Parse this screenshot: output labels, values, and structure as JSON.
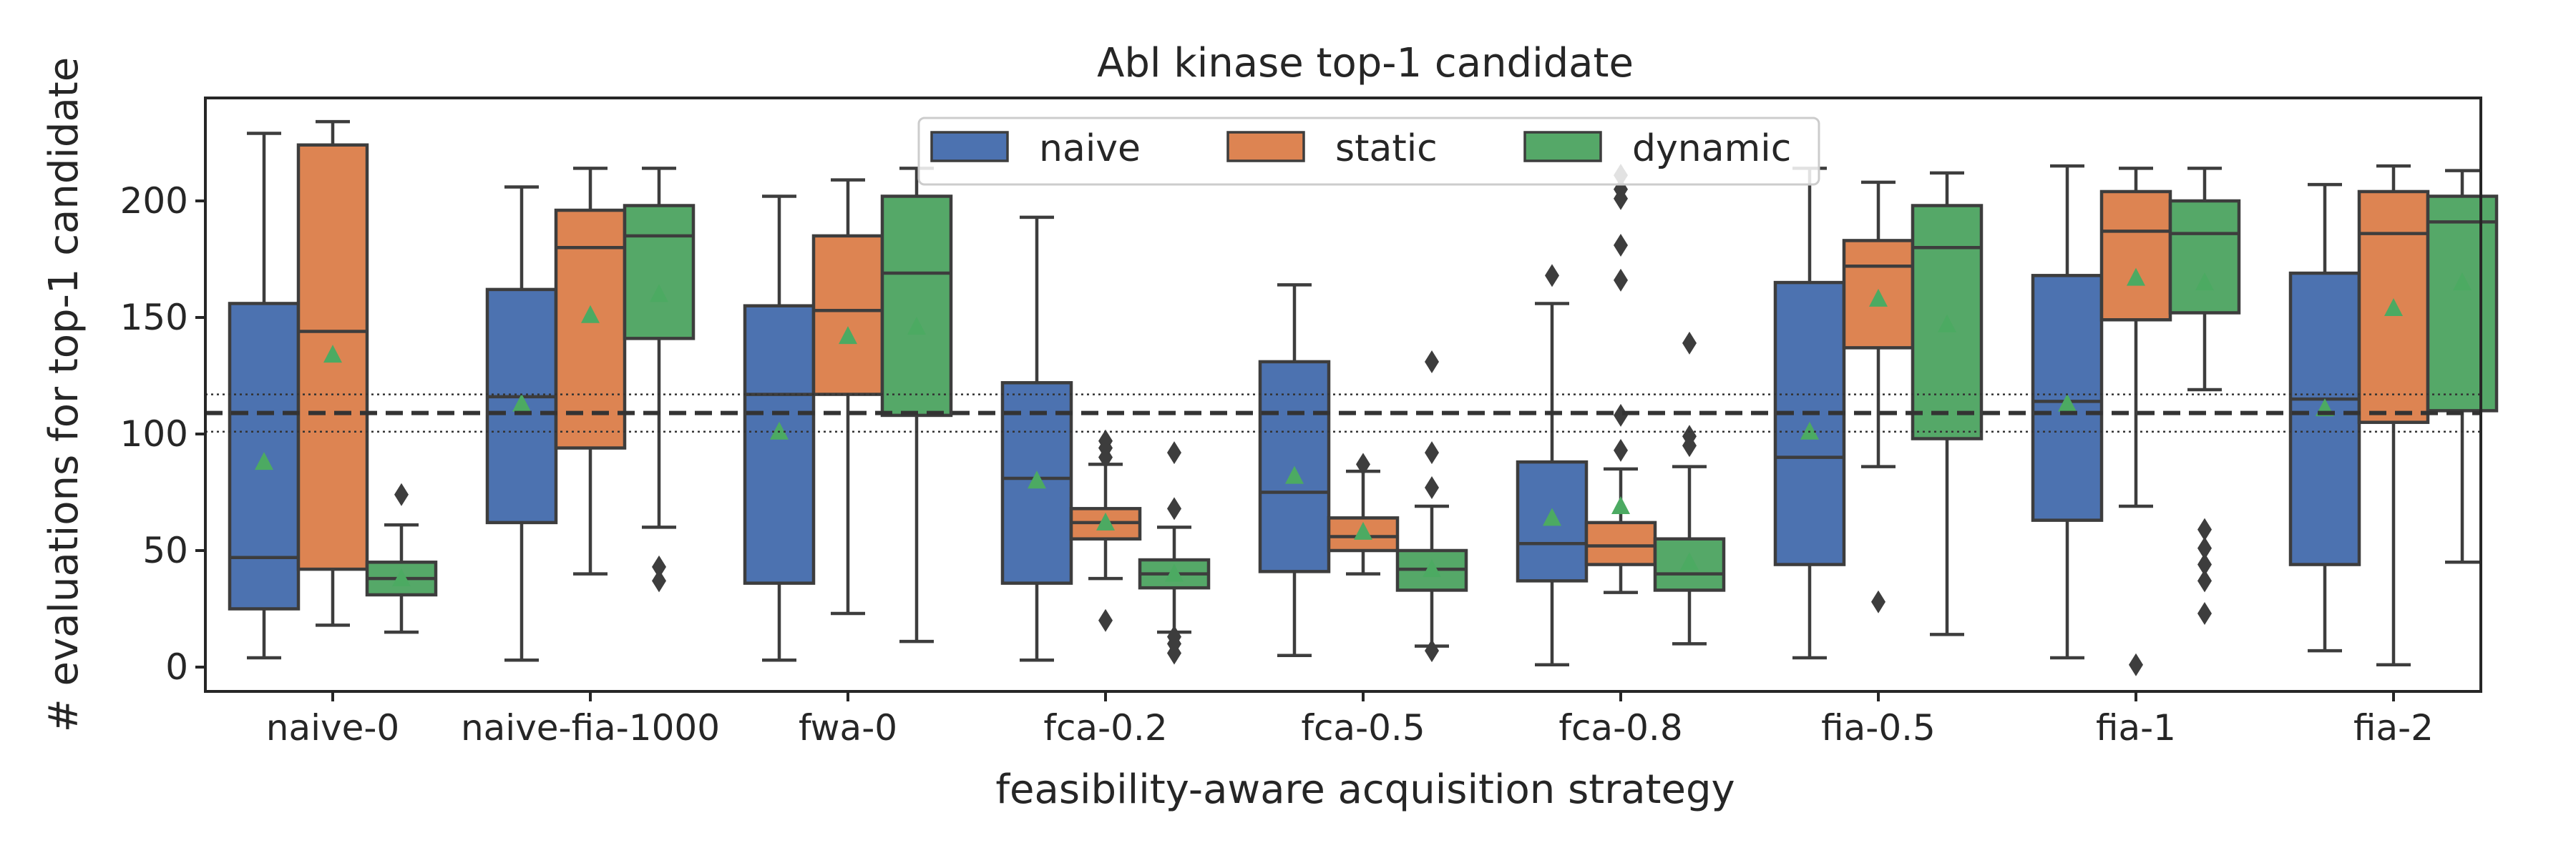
{
  "chart_data": {
    "type": "box",
    "title": "Abl kinase top-1 candidate",
    "xlabel": "feasibility-aware acquisition strategy",
    "ylabel": "# evaluations for top-1 candidate",
    "ylim": [
      -10,
      245
    ],
    "yticks": [
      0,
      50,
      100,
      150,
      200
    ],
    "grid": false,
    "legend_position": "top-center",
    "categories": [
      "naive-0",
      "naive-fia-1000",
      "fwa-0",
      "fca-0.2",
      "fca-0.5",
      "fca-0.8",
      "fia-0.5",
      "fia-1",
      "fia-2"
    ],
    "reference_lines": [
      {
        "y": 109,
        "style": "dashed"
      },
      {
        "y": 117,
        "style": "dotted"
      },
      {
        "y": 101,
        "style": "dotted"
      }
    ],
    "series": [
      {
        "name": "naive",
        "color": "#4c72b0",
        "boxes": [
          {
            "whislo": 4,
            "q1": 25,
            "median": 47,
            "q3": 156,
            "whishi": 229,
            "mean": 88,
            "fliers": []
          },
          {
            "whislo": 3,
            "q1": 62,
            "median": 116,
            "q3": 162,
            "whishi": 206,
            "mean": 113,
            "fliers": []
          },
          {
            "whislo": 3,
            "q1": 36,
            "median": 117,
            "q3": 155,
            "whishi": 202,
            "mean": 101,
            "fliers": []
          },
          {
            "whislo": 3,
            "q1": 36,
            "median": 81,
            "q3": 122,
            "whishi": 193,
            "mean": 80,
            "fliers": []
          },
          {
            "whislo": 5,
            "q1": 41,
            "median": 75,
            "q3": 131,
            "whishi": 164,
            "mean": 82,
            "fliers": []
          },
          {
            "whislo": 1,
            "q1": 37,
            "median": 53,
            "q3": 88,
            "whishi": 156,
            "mean": 64,
            "fliers": [
              168
            ]
          },
          {
            "whislo": 4,
            "q1": 44,
            "median": 90,
            "q3": 165,
            "whishi": 214,
            "mean": 101,
            "fliers": []
          },
          {
            "whislo": 4,
            "q1": 63,
            "median": 114,
            "q3": 168,
            "whishi": 215,
            "mean": 113,
            "fliers": []
          },
          {
            "whislo": 7,
            "q1": 44,
            "median": 115,
            "q3": 169,
            "whishi": 207,
            "mean": 111,
            "fliers": []
          }
        ]
      },
      {
        "name": "static",
        "color": "#dd8452",
        "boxes": [
          {
            "whislo": 18,
            "q1": 42,
            "median": 144,
            "q3": 224,
            "whishi": 234,
            "mean": 134,
            "fliers": []
          },
          {
            "whislo": 40,
            "q1": 94,
            "median": 180,
            "q3": 196,
            "whishi": 214,
            "mean": 151,
            "fliers": []
          },
          {
            "whislo": 23,
            "q1": 117,
            "median": 153,
            "q3": 185,
            "whishi": 209,
            "mean": 142,
            "fliers": []
          },
          {
            "whislo": 38,
            "q1": 55,
            "median": 62,
            "q3": 68,
            "whishi": 87,
            "mean": 62,
            "fliers": [
              20,
              90,
              94,
              97
            ]
          },
          {
            "whislo": 40,
            "q1": 50,
            "median": 56,
            "q3": 64,
            "whishi": 84,
            "mean": 58,
            "fliers": [
              87
            ]
          },
          {
            "whislo": 32,
            "q1": 44,
            "median": 52,
            "q3": 62,
            "whishi": 85,
            "mean": 69,
            "fliers": [
              93,
              108,
              166,
              181,
              201,
              205,
              211
            ]
          },
          {
            "whislo": 86,
            "q1": 137,
            "median": 172,
            "q3": 183,
            "whishi": 208,
            "mean": 158,
            "fliers": [
              28
            ]
          },
          {
            "whislo": 69,
            "q1": 149,
            "median": 187,
            "q3": 204,
            "whishi": 214,
            "mean": 167,
            "fliers": [
              1
            ]
          },
          {
            "whislo": 1,
            "q1": 105,
            "median": 186,
            "q3": 204,
            "whishi": 215,
            "mean": 154,
            "fliers": []
          }
        ]
      },
      {
        "name": "dynamic",
        "color": "#55a868",
        "boxes": [
          {
            "whislo": 15,
            "q1": 31,
            "median": 38,
            "q3": 45,
            "whishi": 61,
            "mean": 38,
            "fliers": [
              74
            ]
          },
          {
            "whislo": 60,
            "q1": 141,
            "median": 185,
            "q3": 198,
            "whishi": 214,
            "mean": 160,
            "fliers": [
              37,
              43
            ]
          },
          {
            "whislo": 11,
            "q1": 108,
            "median": 169,
            "q3": 202,
            "whishi": 214,
            "mean": 146,
            "fliers": []
          },
          {
            "whislo": 15,
            "q1": 34,
            "median": 40,
            "q3": 46,
            "whishi": 60,
            "mean": 40,
            "fliers": [
              6,
              10,
              13,
              68,
              92
            ]
          },
          {
            "whislo": 9,
            "q1": 33,
            "median": 42,
            "q3": 50,
            "whishi": 69,
            "mean": 42,
            "fliers": [
              7,
              77,
              92,
              131
            ]
          },
          {
            "whislo": 10,
            "q1": 33,
            "median": 40,
            "q3": 55,
            "whishi": 86,
            "mean": 45,
            "fliers": [
              95,
              99,
              139
            ]
          },
          {
            "whislo": 14,
            "q1": 98,
            "median": 180,
            "q3": 198,
            "whishi": 212,
            "mean": 147,
            "fliers": []
          },
          {
            "whislo": 119,
            "q1": 152,
            "median": 186,
            "q3": 200,
            "whishi": 214,
            "mean": 165,
            "fliers": [
              23,
              37,
              44,
              51,
              59
            ]
          },
          {
            "whislo": 45,
            "q1": 110,
            "median": 191,
            "q3": 202,
            "whishi": 213,
            "mean": 165,
            "fliers": []
          }
        ]
      }
    ]
  }
}
